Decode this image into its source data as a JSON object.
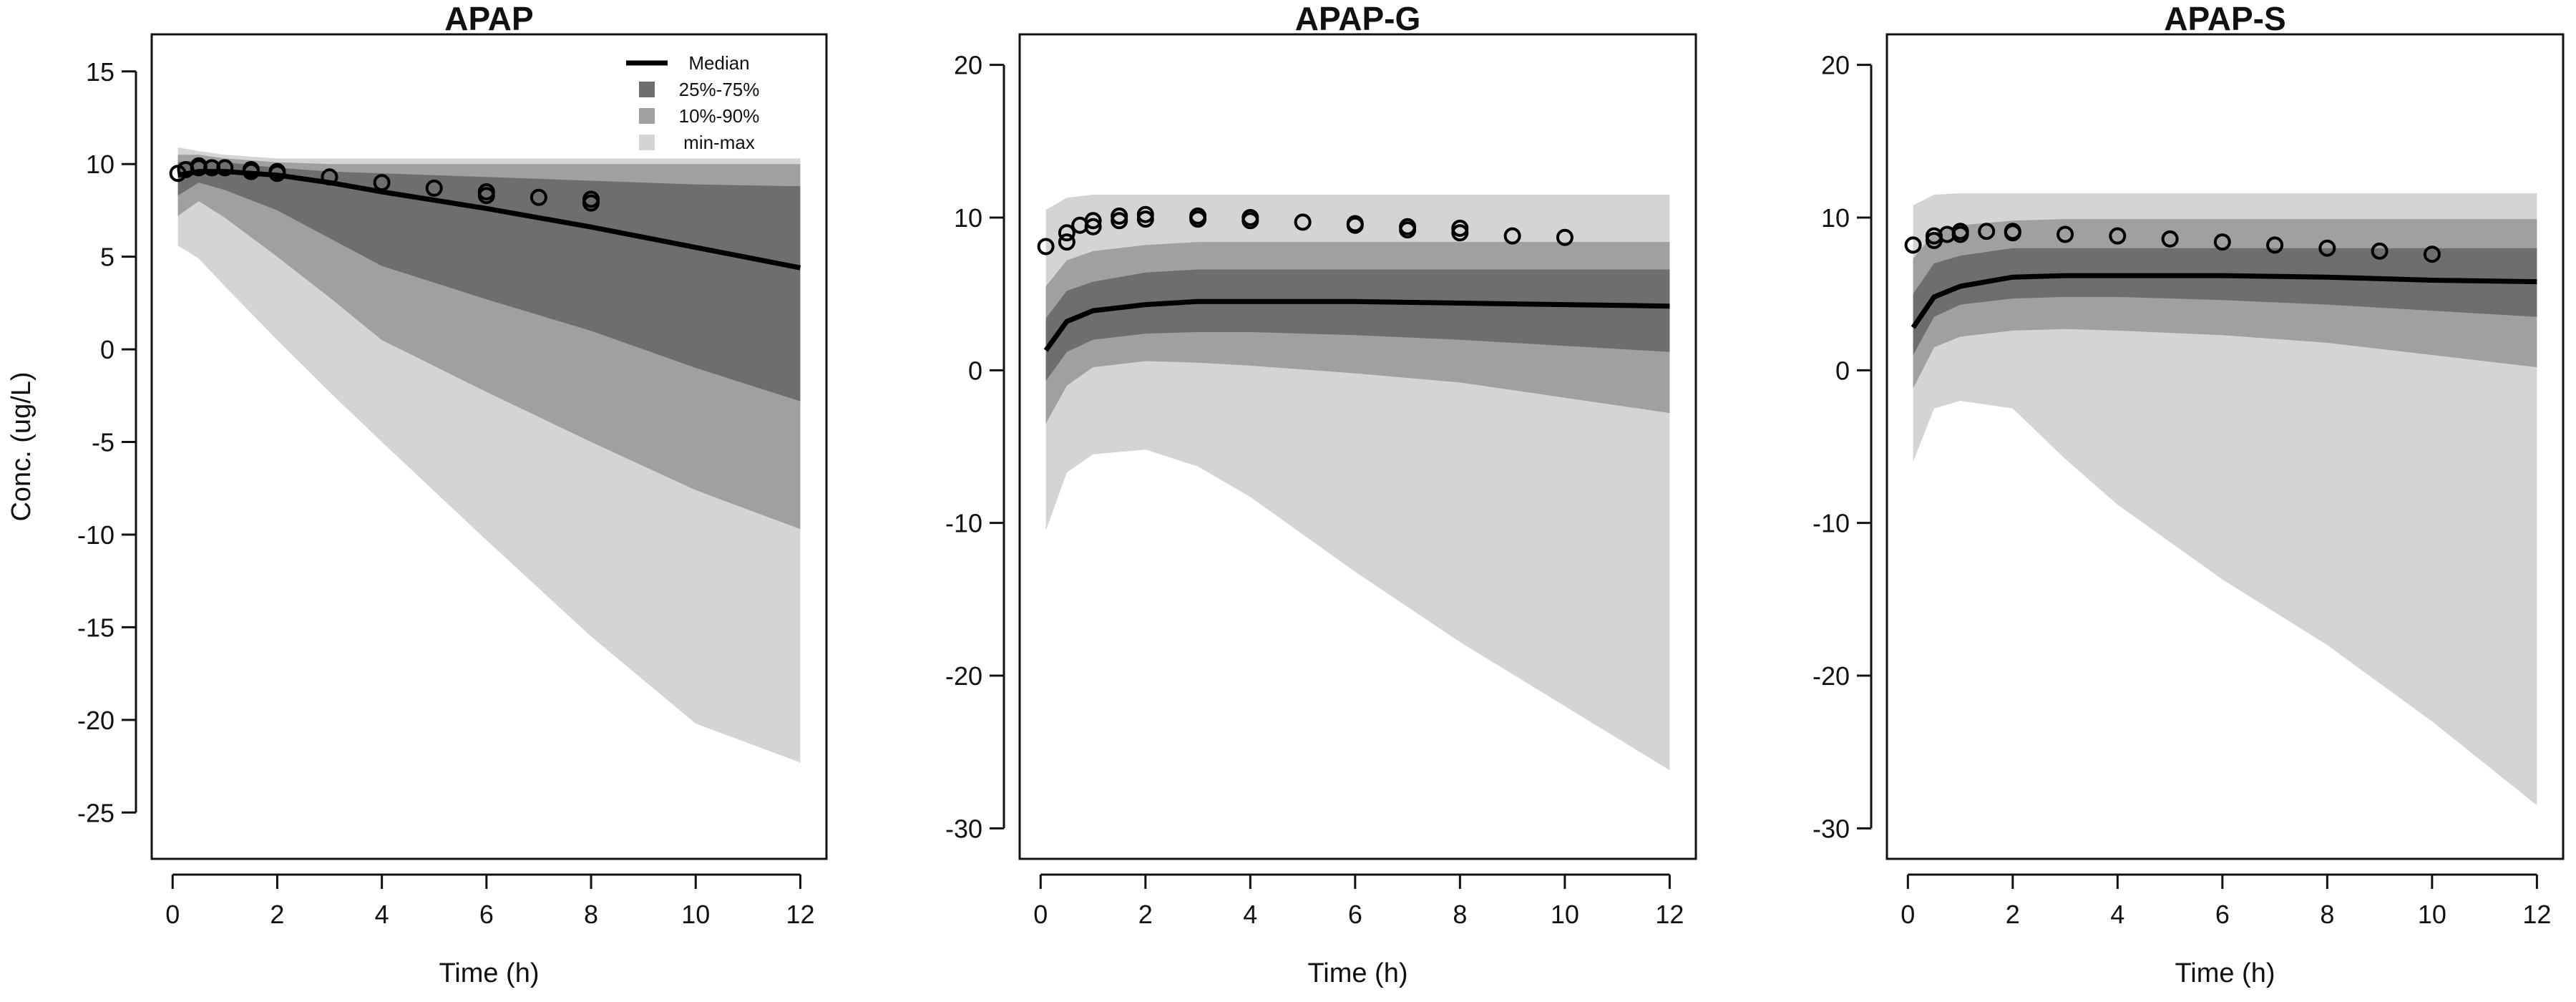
{
  "chart_data": [
    {
      "type": "area",
      "title": "APAP",
      "xlabel": "Time (h)",
      "ylabel": "Conc. (ug/L)",
      "xlim": [
        -0.4,
        12.5
      ],
      "ylim": [
        -27.5,
        17
      ],
      "xticks": [
        0,
        2,
        4,
        6,
        8,
        10,
        12
      ],
      "yticks": [
        -25,
        -20,
        -15,
        -10,
        -5,
        0,
        5,
        10,
        15
      ],
      "legend": {
        "placement": "top-right",
        "entries": [
          {
            "label": "Median",
            "kind": "line",
            "color": "#000000"
          },
          {
            "label": "25%-75%",
            "kind": "box",
            "color": "#6e6e6e"
          },
          {
            "label": "10%-90%",
            "kind": "box",
            "color": "#a0a0a0"
          },
          {
            "label": "min-max",
            "kind": "box",
            "color": "#d4d4d4"
          }
        ]
      },
      "x": [
        0.1,
        0.5,
        1,
        2,
        3,
        4,
        6,
        8,
        10,
        12
      ],
      "bands": [
        {
          "name": "min-max",
          "color": "#d4d4d4",
          "upper": [
            10.9,
            10.7,
            10.5,
            10.3,
            10.3,
            10.3,
            10.3,
            10.3,
            10.3,
            10.3
          ],
          "lower": [
            5.6,
            4.9,
            3.4,
            0.5,
            -2.3,
            -5.0,
            -10.3,
            -15.5,
            -20.2,
            -22.3
          ]
        },
        {
          "name": "10%-90%",
          "color": "#a0a0a0",
          "upper": [
            10.5,
            10.5,
            10.3,
            10.1,
            10.0,
            10.0,
            10.0,
            10.0,
            10.0,
            10.0
          ],
          "lower": [
            7.2,
            8.0,
            7.1,
            5.0,
            2.8,
            0.5,
            -2.3,
            -5.0,
            -7.6,
            -9.7
          ]
        },
        {
          "name": "25%-75%",
          "color": "#6e6e6e",
          "upper": [
            10.1,
            10.2,
            10.1,
            9.8,
            9.6,
            9.5,
            9.3,
            9.1,
            8.9,
            8.8
          ],
          "lower": [
            8.3,
            9.0,
            8.6,
            7.5,
            6.0,
            4.5,
            2.7,
            1.0,
            -1.0,
            -2.8
          ]
        }
      ],
      "median": [
        9.4,
        9.6,
        9.6,
        9.4,
        9.0,
        8.5,
        7.6,
        6.6,
        5.5,
        4.4
      ],
      "observed": [
        [
          0.1,
          9.5
        ],
        [
          0.25,
          9.7
        ],
        [
          0.5,
          9.9
        ],
        [
          0.5,
          9.8
        ],
        [
          0.75,
          9.8
        ],
        [
          1,
          9.8
        ],
        [
          1.5,
          9.7
        ],
        [
          1.5,
          9.6
        ],
        [
          2,
          9.6
        ],
        [
          2,
          9.5
        ],
        [
          3,
          9.3
        ],
        [
          4,
          9.0
        ],
        [
          5,
          8.7
        ],
        [
          6,
          8.5
        ],
        [
          6,
          8.3
        ],
        [
          7,
          8.2
        ],
        [
          8,
          8.1
        ],
        [
          8,
          7.9
        ]
      ]
    },
    {
      "type": "area",
      "title": "APAP-G",
      "xlabel": "Time (h)",
      "ylabel": "",
      "xlim": [
        -0.4,
        12.5
      ],
      "ylim": [
        -32,
        22
      ],
      "xticks": [
        0,
        2,
        4,
        6,
        8,
        10,
        12
      ],
      "yticks": [
        -30,
        -20,
        -10,
        0,
        10,
        20
      ],
      "x": [
        0.1,
        0.5,
        1,
        2,
        3,
        4,
        6,
        8,
        10,
        12
      ],
      "bands": [
        {
          "name": "min-max",
          "color": "#d4d4d4",
          "upper": [
            10.5,
            11.3,
            11.5,
            11.5,
            11.5,
            11.5,
            11.5,
            11.5,
            11.5,
            11.5
          ],
          "lower": [
            -10.5,
            -6.7,
            -5.5,
            -5.2,
            -6.3,
            -8.3,
            -13.2,
            -17.8,
            -22.0,
            -26.2
          ]
        },
        {
          "name": "10%-90%",
          "color": "#a0a0a0",
          "upper": [
            5.5,
            7.2,
            7.8,
            8.2,
            8.4,
            8.4,
            8.4,
            8.4,
            8.4,
            8.4
          ],
          "lower": [
            -3.5,
            -1.0,
            0.2,
            0.6,
            0.5,
            0.3,
            -0.2,
            -0.8,
            -1.8,
            -2.8
          ]
        },
        {
          "name": "25%-75%",
          "color": "#6e6e6e",
          "upper": [
            3.4,
            5.2,
            5.8,
            6.4,
            6.6,
            6.6,
            6.6,
            6.6,
            6.6,
            6.6
          ],
          "lower": [
            -0.7,
            1.2,
            2.0,
            2.4,
            2.5,
            2.5,
            2.3,
            2.0,
            1.6,
            1.2
          ]
        }
      ],
      "median": [
        1.3,
        3.2,
        3.9,
        4.3,
        4.5,
        4.5,
        4.5,
        4.4,
        4.3,
        4.2
      ],
      "observed": [
        [
          0.1,
          8.1
        ],
        [
          0.5,
          8.4
        ],
        [
          0.5,
          9.0
        ],
        [
          0.75,
          9.5
        ],
        [
          1,
          9.4
        ],
        [
          1,
          9.8
        ],
        [
          1.5,
          9.8
        ],
        [
          1.5,
          10.1
        ],
        [
          2,
          9.9
        ],
        [
          2,
          10.2
        ],
        [
          3,
          10.1
        ],
        [
          3,
          9.9
        ],
        [
          4,
          10.0
        ],
        [
          4,
          9.8
        ],
        [
          5,
          9.7
        ],
        [
          6,
          9.6
        ],
        [
          6,
          9.5
        ],
        [
          7,
          9.4
        ],
        [
          7,
          9.2
        ],
        [
          8,
          9.3
        ],
        [
          8,
          9.0
        ],
        [
          9,
          8.8
        ],
        [
          10,
          8.7
        ]
      ]
    },
    {
      "type": "area",
      "title": "APAP-S",
      "xlabel": "Time (h)",
      "ylabel": "",
      "xlim": [
        -0.4,
        12.5
      ],
      "ylim": [
        -32,
        22
      ],
      "xticks": [
        0,
        2,
        4,
        6,
        8,
        10,
        12
      ],
      "yticks": [
        -30,
        -20,
        -10,
        0,
        10,
        20
      ],
      "x": [
        0.1,
        0.5,
        1,
        2,
        3,
        4,
        6,
        8,
        10,
        12
      ],
      "bands": [
        {
          "name": "min-max",
          "color": "#d4d4d4",
          "upper": [
            10.8,
            11.5,
            11.6,
            11.6,
            11.6,
            11.6,
            11.6,
            11.6,
            11.6,
            11.6
          ],
          "lower": [
            -6.0,
            -2.5,
            -2.0,
            -2.5,
            -5.8,
            -8.8,
            -13.7,
            -18.0,
            -23.0,
            -28.5
          ]
        },
        {
          "name": "10%-90%",
          "color": "#a0a0a0",
          "upper": [
            7.3,
            9.0,
            9.5,
            9.8,
            9.9,
            9.9,
            9.9,
            9.9,
            9.9,
            9.9
          ],
          "lower": [
            -1.2,
            1.5,
            2.2,
            2.6,
            2.7,
            2.6,
            2.3,
            1.8,
            1.0,
            0.2
          ]
        },
        {
          "name": "25%-75%",
          "color": "#6e6e6e",
          "upper": [
            5.0,
            7.0,
            7.5,
            8.0,
            8.0,
            8.0,
            8.0,
            8.0,
            8.0,
            8.0
          ],
          "lower": [
            1.0,
            3.5,
            4.3,
            4.7,
            4.8,
            4.8,
            4.6,
            4.3,
            3.9,
            3.5
          ]
        }
      ],
      "median": [
        2.8,
        4.8,
        5.5,
        6.1,
        6.2,
        6.2,
        6.2,
        6.1,
        5.9,
        5.8
      ],
      "observed": [
        [
          0.1,
          8.2
        ],
        [
          0.5,
          8.5
        ],
        [
          0.5,
          8.8
        ],
        [
          0.75,
          8.9
        ],
        [
          1,
          9.1
        ],
        [
          1,
          8.9
        ],
        [
          1.5,
          9.1
        ],
        [
          2,
          9.1
        ],
        [
          2,
          9.0
        ],
        [
          3,
          8.9
        ],
        [
          4,
          8.8
        ],
        [
          5,
          8.6
        ],
        [
          6,
          8.4
        ],
        [
          7,
          8.2
        ],
        [
          8,
          8.0
        ],
        [
          9,
          7.8
        ],
        [
          10,
          7.6
        ]
      ]
    }
  ]
}
